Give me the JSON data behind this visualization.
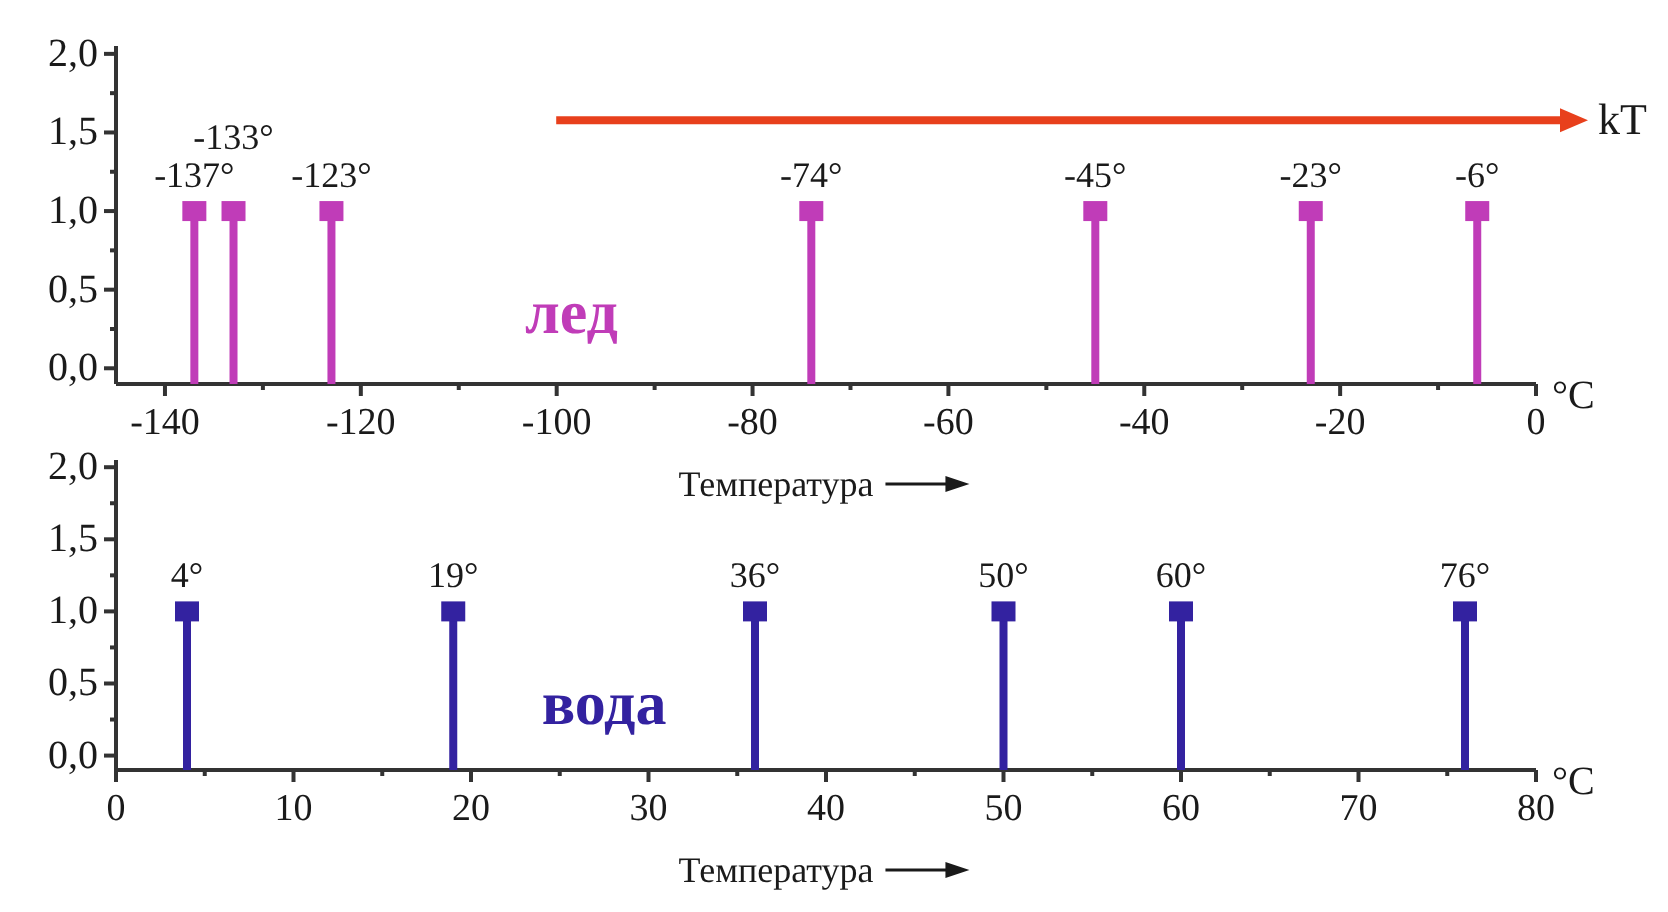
{
  "chart_data": [
    {
      "type": "lollipop",
      "xlabel": "Температура",
      "x": [
        -137,
        -133,
        -123,
        -74,
        -45,
        -23,
        -6
      ],
      "series": [
        {
          "name": "лед",
          "color": "#c03cb8",
          "values": [
            1.0,
            1.0,
            1.0,
            1.0,
            1.0,
            1.0,
            1.0
          ]
        }
      ],
      "xlim": [
        -145,
        0
      ],
      "xticks": [
        -140,
        {
          "value": -130,
          "label": null
        },
        -120,
        {
          "value": -110,
          "label": null
        },
        -100,
        {
          "value": -90,
          "label": null
        },
        -80,
        {
          "value": -70,
          "label": null
        },
        -60,
        {
          "value": -50,
          "label": null
        },
        -40,
        {
          "value": -30,
          "label": null
        },
        -20,
        {
          "value": -10,
          "label": null
        },
        0
      ],
      "ylim": [
        -0.1,
        2.05
      ],
      "yticks": [
        {
          "value": 0,
          "label": "0,0"
        },
        {
          "value": 0.25,
          "label": null
        },
        {
          "value": 0.5,
          "label": "0,5"
        },
        {
          "value": 0.75,
          "label": null
        },
        {
          "value": 1,
          "label": "1,0"
        },
        {
          "value": 1.25,
          "label": null
        },
        {
          "value": 1.5,
          "label": "1,5"
        },
        {
          "value": 1.75,
          "label": null
        },
        {
          "value": 2,
          "label": "2,0"
        }
      ],
      "marker": "square",
      "annotations": [
        {
          "text": "-137°",
          "x": -137,
          "y": 1.0
        },
        {
          "text": "-133°",
          "x": -133,
          "y": 1.0
        },
        {
          "text": "-123°",
          "x": -123,
          "y": 1.0
        },
        {
          "text": "-74°",
          "x": -74,
          "y": 1.0
        },
        {
          "text": "-45°",
          "x": -45,
          "y": 1.0
        },
        {
          "text": "-23°",
          "x": -23,
          "y": 1.0
        },
        {
          "text": "-6°",
          "x": -6,
          "y": 1.0
        },
        "kT",
        "°C"
      ]
    },
    {
      "type": "lollipop",
      "xlabel": "Температура",
      "x": [
        4,
        19,
        36,
        50,
        60,
        76
      ],
      "series": [
        {
          "name": "вода",
          "color": "#3322a0",
          "values": [
            1.0,
            1.0,
            1.0,
            1.0,
            1.0,
            1.0
          ]
        }
      ],
      "xlim": [
        0,
        80
      ],
      "xticks": [
        0,
        {
          "value": 5,
          "label": null
        },
        10,
        {
          "value": 15,
          "label": null
        },
        20,
        {
          "value": 25,
          "label": null
        },
        30,
        {
          "value": 35,
          "label": null
        },
        40,
        {
          "value": 45,
          "label": null
        },
        50,
        {
          "value": 55,
          "label": null
        },
        60,
        {
          "value": 65,
          "label": null
        },
        70,
        {
          "value": 75,
          "label": null
        },
        80
      ],
      "ylim": [
        -0.1,
        2.05
      ],
      "yticks": [
        {
          "value": 0,
          "label": "0,0"
        },
        {
          "value": 0.25,
          "label": null
        },
        {
          "value": 0.5,
          "label": "0,5"
        },
        {
          "value": 0.75,
          "label": null
        },
        {
          "value": 1,
          "label": "1,0"
        },
        {
          "value": 1.25,
          "label": null
        },
        {
          "value": 1.5,
          "label": "1,5"
        },
        {
          "value": 1.75,
          "label": null
        },
        {
          "value": 2,
          "label": "2,0"
        }
      ],
      "marker": "square",
      "annotations": [
        {
          "text": "4°",
          "x": 4,
          "y": 1.0
        },
        {
          "text": "19°",
          "x": 19,
          "y": 1.0
        },
        {
          "text": "36°",
          "x": 36,
          "y": 1.0
        },
        {
          "text": "50°",
          "x": 50,
          "y": 1.0
        },
        {
          "text": "60°",
          "x": 60,
          "y": 1.0
        },
        {
          "text": "76°",
          "x": 76,
          "y": 1.0
        },
        "°C"
      ]
    }
  ]
}
